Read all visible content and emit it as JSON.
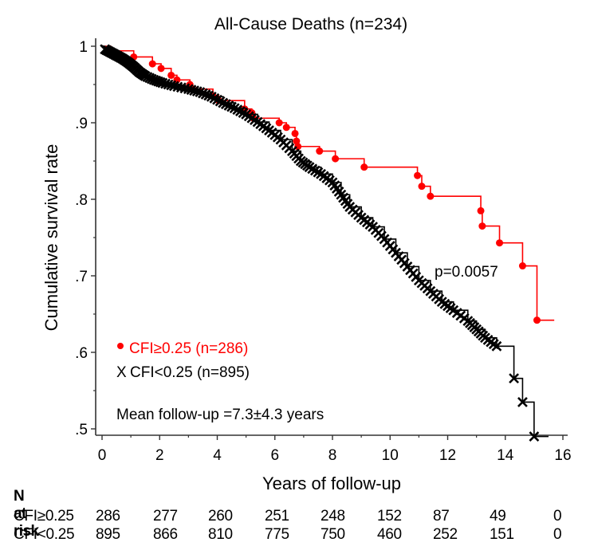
{
  "chart_data": {
    "type": "line",
    "subtype": "kaplan-meier",
    "title": "All-Cause Deaths (n=234)",
    "xlabel": "Years of follow-up",
    "ylabel": "Cumulative survival rate",
    "xlim": [
      0,
      16
    ],
    "ylim": [
      0.5,
      1.0
    ],
    "xticks": [
      0,
      2,
      4,
      6,
      8,
      10,
      12,
      14,
      16
    ],
    "yticks": [
      0.5,
      0.6,
      0.7,
      0.8,
      0.9,
      1.0
    ],
    "ytick_labels": [
      ".5",
      ".6",
      ".7",
      ".8",
      ".9",
      "1"
    ],
    "grid": false,
    "series": [
      {
        "name": "CFI≥0.25 (n=286)",
        "color": "#ff0000",
        "marker": "dot",
        "end_time": 15.7,
        "steps": [
          [
            0,
            1.0
          ],
          [
            0.3,
            0.994
          ],
          [
            1.1,
            0.986
          ],
          [
            1.75,
            0.977
          ],
          [
            2.05,
            0.971
          ],
          [
            2.4,
            0.962
          ],
          [
            2.6,
            0.956
          ],
          [
            3.05,
            0.95
          ],
          [
            3.15,
            0.944
          ],
          [
            3.85,
            0.935
          ],
          [
            4.05,
            0.929
          ],
          [
            4.95,
            0.918
          ],
          [
            5.2,
            0.913
          ],
          [
            5.25,
            0.906
          ],
          [
            6.15,
            0.9
          ],
          [
            6.4,
            0.894
          ],
          [
            6.7,
            0.886
          ],
          [
            6.75,
            0.876
          ],
          [
            6.8,
            0.869
          ],
          [
            7.55,
            0.863
          ],
          [
            8.1,
            0.853
          ],
          [
            9.1,
            0.842
          ],
          [
            10.95,
            0.831
          ],
          [
            11.1,
            0.817
          ],
          [
            11.4,
            0.804
          ],
          [
            13.15,
            0.785
          ],
          [
            13.2,
            0.765
          ],
          [
            13.8,
            0.743
          ],
          [
            14.6,
            0.713
          ],
          [
            15.1,
            0.642
          ]
        ]
      },
      {
        "name": "CFI<0.25 (n=895)",
        "color": "#000000",
        "marker": "x",
        "end_time": 15.5,
        "steps": [
          [
            0,
            1.0
          ],
          [
            0.1,
            0.996
          ],
          [
            0.3,
            0.992
          ],
          [
            0.5,
            0.988
          ],
          [
            0.7,
            0.984
          ],
          [
            0.9,
            0.979
          ],
          [
            1.1,
            0.973
          ],
          [
            1.3,
            0.966
          ],
          [
            1.5,
            0.961
          ],
          [
            1.8,
            0.956
          ],
          [
            2.1,
            0.952
          ],
          [
            2.5,
            0.948
          ],
          [
            3.0,
            0.944
          ],
          [
            3.4,
            0.94
          ],
          [
            3.8,
            0.934
          ],
          [
            4.2,
            0.926
          ],
          [
            4.6,
            0.919
          ],
          [
            5.0,
            0.911
          ],
          [
            5.4,
            0.901
          ],
          [
            5.8,
            0.89
          ],
          [
            6.2,
            0.878
          ],
          [
            6.6,
            0.863
          ],
          [
            6.9,
            0.85
          ],
          [
            7.2,
            0.842
          ],
          [
            7.6,
            0.833
          ],
          [
            8.0,
            0.822
          ],
          [
            8.3,
            0.806
          ],
          [
            8.6,
            0.79
          ],
          [
            9.0,
            0.776
          ],
          [
            9.4,
            0.764
          ],
          [
            9.8,
            0.748
          ],
          [
            10.2,
            0.73
          ],
          [
            10.6,
            0.712
          ],
          [
            11.0,
            0.694
          ],
          [
            11.4,
            0.68
          ],
          [
            11.8,
            0.666
          ],
          [
            12.2,
            0.655
          ],
          [
            12.7,
            0.641
          ],
          [
            13.0,
            0.63
          ],
          [
            13.3,
            0.619
          ],
          [
            13.7,
            0.608
          ],
          [
            14.3,
            0.566
          ],
          [
            14.6,
            0.535
          ],
          [
            15.0,
            0.49
          ]
        ]
      }
    ],
    "annotations": [
      {
        "text": "p=0.0057",
        "x": 11.8,
        "y": 0.705
      },
      {
        "text": "Mean follow-up =7.3±4.3 years",
        "x": 0.5,
        "y": 0.52
      }
    ],
    "legend": {
      "placement": "lower-left",
      "entries": [
        {
          "symbol": "•",
          "label": "CFI≥0.25 (n=286)",
          "color": "#ff0000"
        },
        {
          "symbol": "X",
          "label": "CFI<0.25 (n=895)",
          "color": "#000000"
        }
      ]
    }
  },
  "risk_table": {
    "title": "N at risk",
    "times": [
      0,
      2,
      4,
      6,
      8,
      10,
      12,
      14,
      16
    ],
    "rows": [
      {
        "label": "CFI≥0.25",
        "values": [
          "286",
          "277",
          "260",
          "251",
          "248",
          "152",
          "87",
          "49",
          "0"
        ]
      },
      {
        "label": "CFI<0.25",
        "values": [
          "895",
          "866",
          "810",
          "775",
          "750",
          "460",
          "252",
          "151",
          "0"
        ]
      }
    ]
  }
}
